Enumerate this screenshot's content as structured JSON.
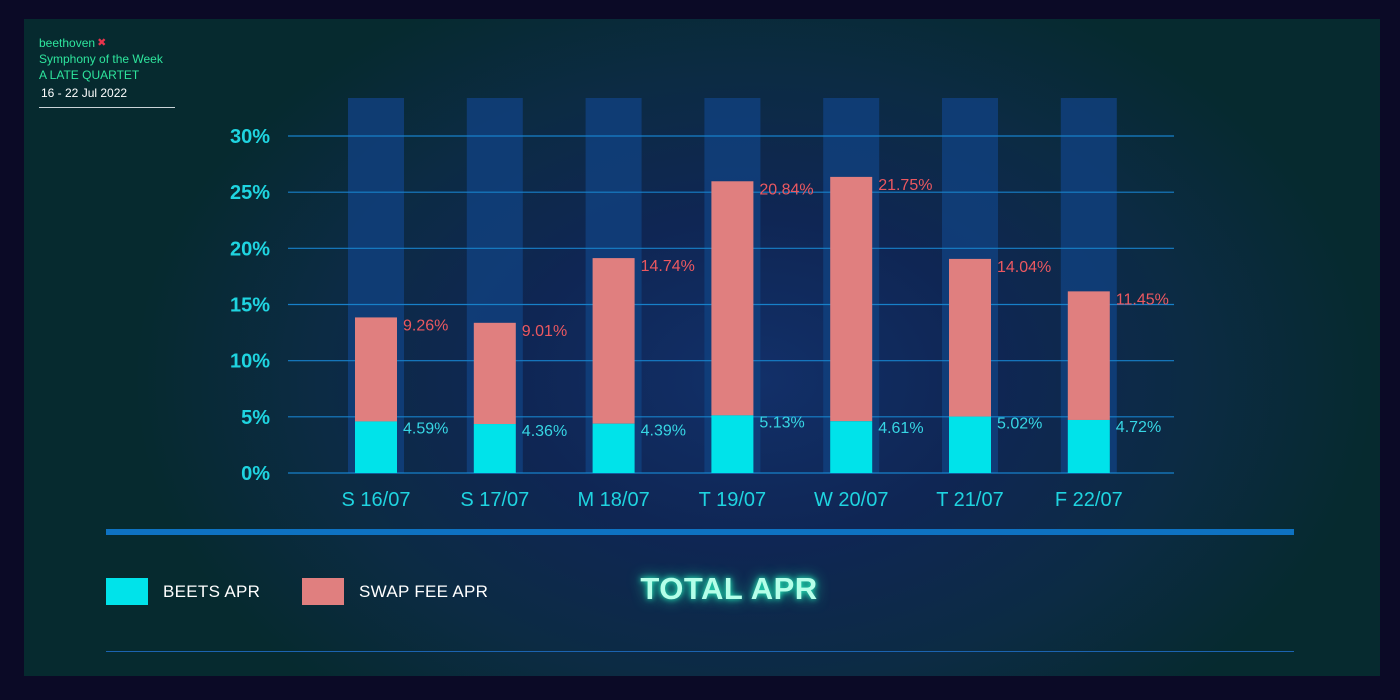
{
  "brand": {
    "name": "beethoven",
    "series_title": "Symphony of the Week",
    "subtitle": "A LATE QUARTET",
    "date_range": "16 - 22 Jul 2022"
  },
  "legend": {
    "beets_label": "BEETS APR",
    "swap_label": "SWAP FEE APR"
  },
  "total_label": "TOTAL APR",
  "colors": {
    "beets": "#00e3ea",
    "swap": "#e07f7f",
    "swap_text": "#ec5860",
    "beets_text": "#37d6e4",
    "axis_text": "#1fd4e0",
    "grid": "#1780c9",
    "bg_column": "#11407c"
  },
  "chart_data": {
    "type": "bar",
    "stacked": true,
    "categories": [
      "S 16/07",
      "S 17/07",
      "M 18/07",
      "T 19/07",
      "W 20/07",
      "T 21/07",
      "F 22/07"
    ],
    "series": [
      {
        "name": "BEETS APR",
        "values": [
          4.59,
          4.36,
          4.39,
          5.13,
          4.61,
          5.02,
          4.72
        ],
        "labels": [
          "4.59%",
          "4.36%",
          "4.39%",
          "5.13%",
          "4.61%",
          "5.02%",
          "4.72%"
        ]
      },
      {
        "name": "SWAP FEE APR",
        "values": [
          9.26,
          9.01,
          14.74,
          20.84,
          21.75,
          14.04,
          11.45
        ],
        "labels": [
          "9.26%",
          "9.01%",
          "14.74%",
          "20.84%",
          "21.75%",
          "14.04%",
          "11.45%"
        ]
      }
    ],
    "yticks": [
      0,
      5,
      10,
      15,
      20,
      25,
      30
    ],
    "ytick_labels": [
      "0%",
      "5%",
      "10%",
      "15%",
      "20%",
      "25%",
      "30%"
    ],
    "ylim": [
      0,
      30
    ],
    "grid": true
  }
}
